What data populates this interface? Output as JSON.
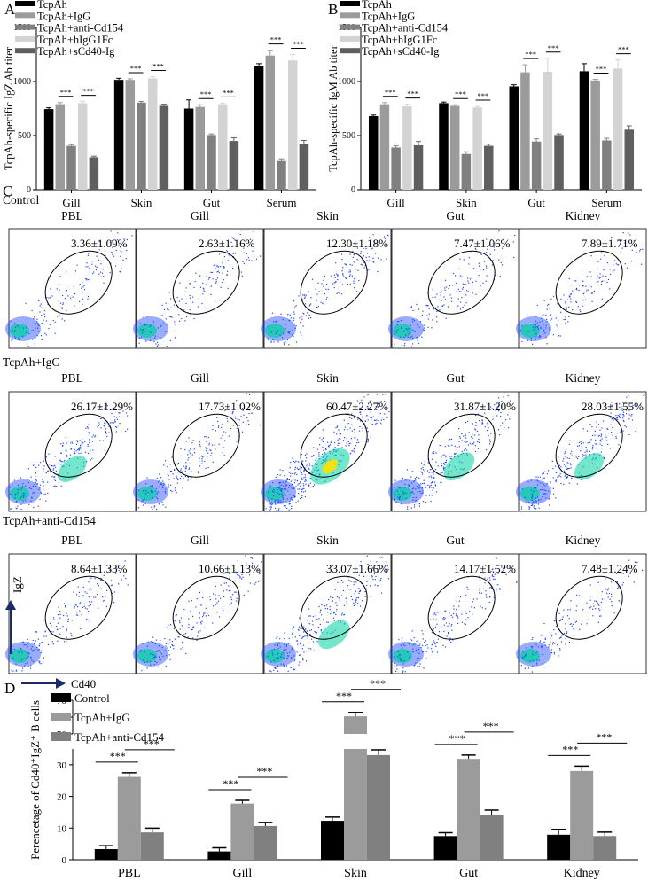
{
  "figure": {
    "panels": [
      "A",
      "B",
      "C",
      "D"
    ]
  },
  "colors": {
    "black": "#000000",
    "grey1": "#9b9b9b",
    "grey2": "#808080",
    "grey3": "#d3d3d3",
    "grey4": "#5f5f5f",
    "flow_low": "#1e46ff",
    "flow_mid": "#00d2a0",
    "flow_high": "#ffe100"
  },
  "panel_c": {
    "axis_y": "IgZ",
    "axis_x": "Cd40",
    "columns": [
      "PBL",
      "Gill",
      "Skin",
      "Gut",
      "Kidney"
    ],
    "rows": [
      {
        "label": "Control",
        "values": [
          "3.36±1.09%",
          "2.63±1.16%",
          "12.30±1.18%",
          "7.47±1.06%",
          "7.89±1.71%"
        ]
      },
      {
        "label": "TcpAh+IgG",
        "values": [
          "26.17±1.29%",
          "17.73±1.02%",
          "60.47±2.27%",
          "31.87±1.20%",
          "28.03±1.55%"
        ]
      },
      {
        "label": "TcpAh+anti-Cd154",
        "values": [
          "8.64±1.33%",
          "10.66±1.13%",
          "33.07±1.66%",
          "14.17±1.52%",
          "7.48±1.24%"
        ]
      }
    ]
  },
  "chart_data": [
    {
      "panel": "A",
      "type": "bar",
      "ylabel": "TcpAh-specific IgZ Ab titer",
      "ylim": [
        0,
        1500
      ],
      "yticks": [
        0,
        500,
        1000,
        1500
      ],
      "categories": [
        "Gill",
        "Skin",
        "Gut",
        "Serum"
      ],
      "legend_position": "top-left",
      "series": [
        {
          "name": "TcpAh",
          "color": "#000000",
          "values": [
            745,
            1015,
            750,
            1145
          ],
          "errors": [
            12,
            15,
            80,
            20
          ]
        },
        {
          "name": "TcpAh+IgG",
          "color": "#9b9b9b",
          "values": [
            790,
            1015,
            765,
            1240
          ],
          "errors": [
            15,
            10,
            20,
            50
          ]
        },
        {
          "name": "TcpAh+anti-Cd154",
          "color": "#808080",
          "values": [
            405,
            805,
            505,
            265
          ],
          "errors": [
            12,
            10,
            10,
            20
          ]
        },
        {
          "name": "TcpAh+hIgG1Fc",
          "color": "#d3d3d3",
          "values": [
            800,
            1030,
            790,
            1195
          ],
          "errors": [
            15,
            15,
            10,
            55
          ]
        },
        {
          "name": "TcpAh+sCd40-Ig",
          "color": "#5f5f5f",
          "values": [
            300,
            775,
            450,
            420
          ],
          "errors": [
            10,
            15,
            30,
            35
          ]
        }
      ],
      "significance": [
        "***",
        "***",
        "***",
        "***",
        "***",
        "***",
        "***",
        "***"
      ]
    },
    {
      "panel": "B",
      "type": "bar",
      "ylabel": "TcpAh-specific IgM Ab titer",
      "ylim": [
        0,
        1500
      ],
      "yticks": [
        0,
        500,
        1000,
        1500
      ],
      "categories": [
        "Gill",
        "Skin",
        "Gut",
        "Serum"
      ],
      "legend_position": "top-left",
      "series": [
        {
          "name": "TcpAh",
          "color": "#000000",
          "values": [
            680,
            800,
            955,
            1095
          ],
          "errors": [
            10,
            10,
            15,
            70
          ]
        },
        {
          "name": "TcpAh+IgG",
          "color": "#9b9b9b",
          "values": [
            790,
            775,
            1085,
            1010
          ],
          "errors": [
            15,
            10,
            70,
            10
          ]
        },
        {
          "name": "TcpAh+anti-Cd154",
          "color": "#808080",
          "values": [
            390,
            330,
            445,
            455
          ],
          "errors": [
            15,
            20,
            25,
            20
          ]
        },
        {
          "name": "TcpAh+hIgG1Fc",
          "color": "#d3d3d3",
          "values": [
            770,
            760,
            1090,
            1120
          ],
          "errors": [
            20,
            10,
            125,
            80
          ]
        },
        {
          "name": "TcpAh+sCd40-Ig",
          "color": "#5f5f5f",
          "values": [
            410,
            405,
            505,
            555
          ],
          "errors": [
            35,
            15,
            10,
            35
          ]
        }
      ],
      "significance": [
        "***",
        "***",
        "***",
        "***",
        "***",
        "***",
        "***",
        "***"
      ]
    },
    {
      "panel": "D",
      "type": "bar",
      "ylabel": "Perencetage of Cd40⁺IgZ⁺ B cells",
      "yticks_lower": [
        0,
        10,
        20,
        30
      ],
      "yticks_upper": [
        50,
        60,
        70
      ],
      "axis_break": [
        35,
        50
      ],
      "categories": [
        "PBL",
        "Gill",
        "Skin",
        "Gut",
        "Kidney"
      ],
      "legend_position": "top-left",
      "series": [
        {
          "name": "Control",
          "color": "#000000",
          "values": [
            3.36,
            2.63,
            12.3,
            7.47,
            7.89
          ],
          "errors": [
            1.09,
            1.16,
            1.18,
            1.06,
            1.71
          ]
        },
        {
          "name": "TcpAh+IgG",
          "color": "#9b9b9b",
          "values": [
            26.17,
            17.73,
            60.47,
            31.87,
            28.03
          ],
          "errors": [
            1.29,
            1.02,
            2.27,
            1.2,
            1.55
          ]
        },
        {
          "name": "TcpAh+anti-Cd154",
          "color": "#808080",
          "values": [
            8.64,
            10.66,
            33.07,
            14.17,
            7.48
          ],
          "errors": [
            1.33,
            1.13,
            1.66,
            1.52,
            1.24
          ]
        }
      ],
      "significance": [
        "***",
        "***",
        "***",
        "***",
        "***",
        "***",
        "***",
        "***",
        "***",
        "***"
      ]
    }
  ]
}
